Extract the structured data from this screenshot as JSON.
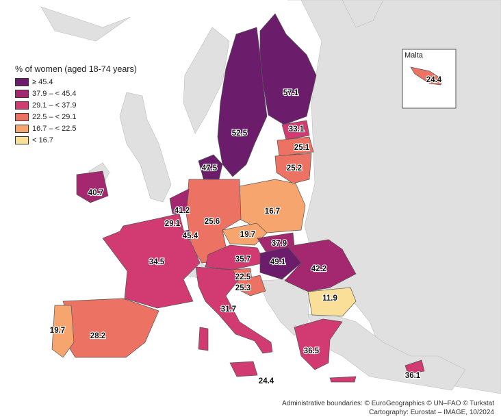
{
  "legend": {
    "title": "% of women (aged 18-74 years)",
    "classes": [
      {
        "label": "≥ 45.4",
        "color": "#6b1d6b"
      },
      {
        "label": "37.9 – < 45.4",
        "color": "#a3286f"
      },
      {
        "label": "29.1 – < 37.9",
        "color": "#d23b72"
      },
      {
        "label": "22.5 – < 29.1",
        "color": "#ec7364"
      },
      {
        "label": "16.7 – < 22.5",
        "color": "#f6a56f"
      },
      {
        "label": "< 16.7",
        "color": "#fadf99"
      }
    ]
  },
  "inset": {
    "title": "Malta",
    "value": "24.4"
  },
  "credits": {
    "line1": "Administrative boundaries: © EuroGeographics © UN–FAO © Turkstat",
    "line2": "Cartography: Eurostat – IMAGE, 10/2024"
  },
  "colors": {
    "sea": "#ffffff",
    "non_eu_land": "#e0e0e0",
    "border": "#555555"
  },
  "regions": [
    {
      "id": "finland",
      "value": "57.1",
      "class": 0
    },
    {
      "id": "sweden",
      "value": "52.5",
      "class": 0
    },
    {
      "id": "denmark",
      "value": "47.5",
      "class": 0
    },
    {
      "id": "hungary",
      "value": "49.1",
      "class": 0
    },
    {
      "id": "luxembourg",
      "value": "45.4",
      "class": 0
    },
    {
      "id": "estonia",
      "value": "33.1",
      "class": 2
    },
    {
      "id": "latvia",
      "value": "25.1",
      "class": 3
    },
    {
      "id": "lithuania",
      "value": "25.2",
      "class": 3
    },
    {
      "id": "ireland",
      "value": "40.7",
      "class": 1
    },
    {
      "id": "netherlands",
      "value": "41.2",
      "class": 1
    },
    {
      "id": "belgium",
      "value": "29.1",
      "class": 2
    },
    {
      "id": "germany",
      "value": "25.6",
      "class": 3
    },
    {
      "id": "poland",
      "value": "16.7",
      "class": 4
    },
    {
      "id": "czechia",
      "value": "19.7",
      "class": 4
    },
    {
      "id": "slovakia",
      "value": "37.9",
      "class": 1
    },
    {
      "id": "austria",
      "value": "35.7",
      "class": 2
    },
    {
      "id": "slovenia",
      "value": "22.5",
      "class": 3
    },
    {
      "id": "croatia",
      "value": "25.3",
      "class": 3
    },
    {
      "id": "romania",
      "value": "42.2",
      "class": 1
    },
    {
      "id": "bulgaria",
      "value": "11.9",
      "class": 5
    },
    {
      "id": "france",
      "value": "34.5",
      "class": 2
    },
    {
      "id": "spain",
      "value": "28.2",
      "class": 3
    },
    {
      "id": "portugal",
      "value": "19.7",
      "class": 4
    },
    {
      "id": "italy",
      "value": "31.7",
      "class": 2
    },
    {
      "id": "greece",
      "value": "36.5",
      "class": 2
    },
    {
      "id": "cyprus",
      "value": "36.1",
      "class": 2
    },
    {
      "id": "malta",
      "value": "24.4",
      "class": 3
    }
  ]
}
